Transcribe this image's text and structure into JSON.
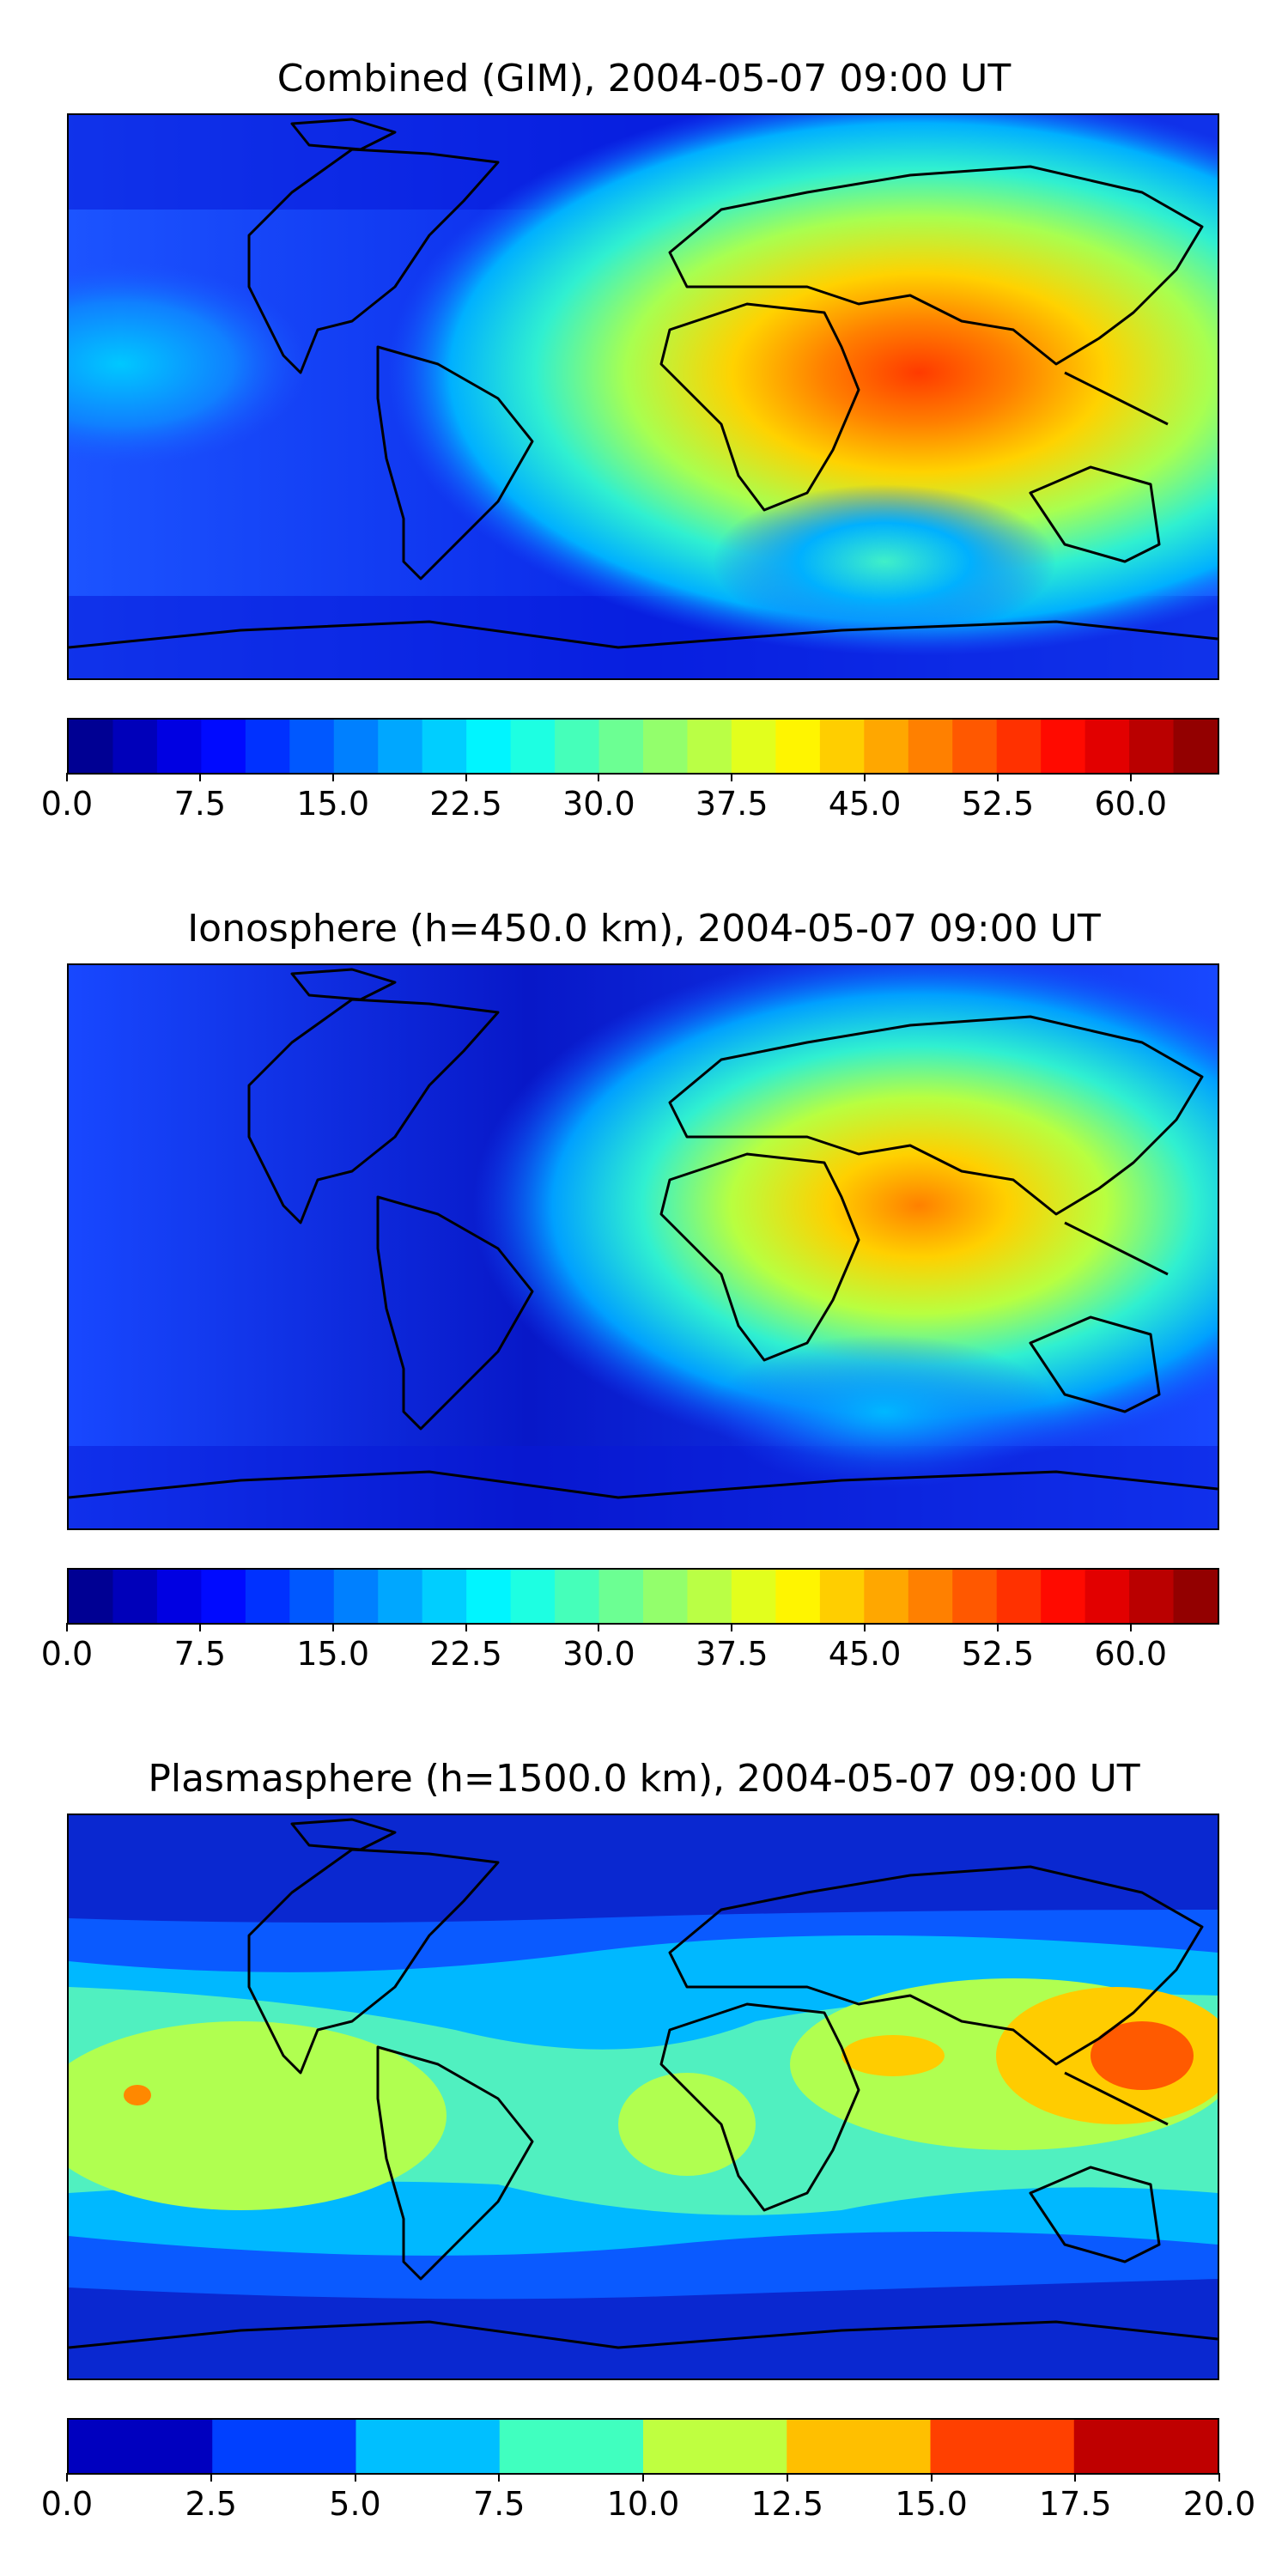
{
  "panels": [
    {
      "title": "Combined (GIM), 2004-05-07 09:00 UT",
      "colorbar": {
        "vmin": 0.0,
        "vmax": 65.0,
        "levels": 26,
        "tick_labels": [
          "0.0",
          "7.5",
          "15.0",
          "22.5",
          "30.0",
          "37.5",
          "45.0",
          "52.5",
          "60.0"
        ],
        "tick_values": [
          0.0,
          7.5,
          15.0,
          22.5,
          30.0,
          37.5,
          45.0,
          52.5,
          60.0
        ]
      }
    },
    {
      "title": "Ionosphere  (h=450.0 km), 2004-05-07 09:00 UT",
      "colorbar": {
        "vmin": 0.0,
        "vmax": 65.0,
        "levels": 26,
        "tick_labels": [
          "0.0",
          "7.5",
          "15.0",
          "22.5",
          "30.0",
          "37.5",
          "45.0",
          "52.5",
          "60.0"
        ],
        "tick_values": [
          0.0,
          7.5,
          15.0,
          22.5,
          30.0,
          37.5,
          45.0,
          52.5,
          60.0
        ]
      }
    },
    {
      "title": "Plasmasphere (h=1500.0 km), 2004-05-07 09:00 UT",
      "colorbar": {
        "vmin": 0.0,
        "vmax": 20.0,
        "levels": 8,
        "tick_labels": [
          "0.0",
          "2.5",
          "5.0",
          "7.5",
          "10.0",
          "12.5",
          "15.0",
          "17.5",
          "20.0"
        ],
        "tick_values": [
          0.0,
          2.5,
          5.0,
          7.5,
          10.0,
          12.5,
          15.0,
          17.5,
          20.0
        ]
      }
    }
  ],
  "colormap": "jet",
  "coastline_color": "#000000"
}
